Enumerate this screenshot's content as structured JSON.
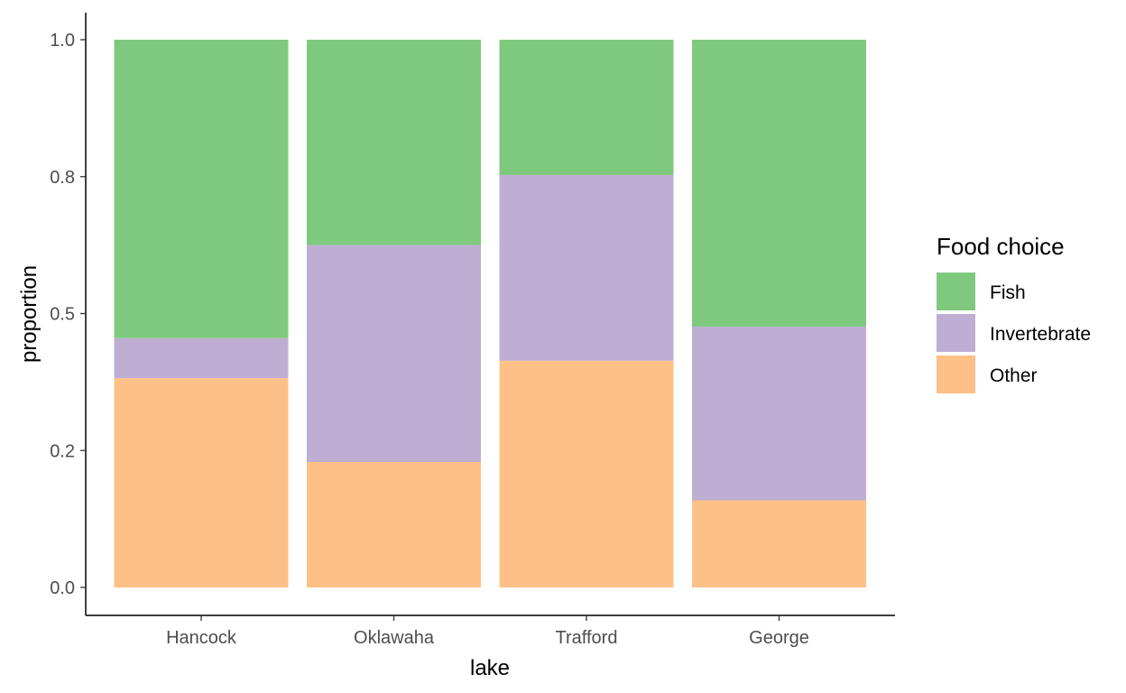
{
  "chart_data": {
    "type": "bar",
    "stacked": true,
    "categories": [
      "Hancock",
      "Oklawaha",
      "Trafford",
      "George"
    ],
    "series": [
      {
        "name": "Other",
        "color": "#FDC086",
        "values": [
          0.382,
          0.229,
          0.414,
          0.159
        ]
      },
      {
        "name": "Invertebrate",
        "color": "#BEAED4",
        "values": [
          0.073,
          0.396,
          0.339,
          0.317
        ]
      },
      {
        "name": "Fish",
        "color": "#7FC97F",
        "values": [
          0.545,
          0.375,
          0.247,
          0.524
        ]
      }
    ],
    "stack_order_top_to_bottom": [
      "Fish",
      "Invertebrate",
      "Other"
    ],
    "xlabel": "lake",
    "ylabel": "proportion",
    "ylim": [
      0,
      1
    ],
    "y_ticks": [
      0.0,
      0.25,
      0.5,
      0.75,
      1.0
    ],
    "y_tick_labels": [
      "0.0",
      "0.2",
      "0.5",
      "0.8",
      "1.0"
    ],
    "grid": false,
    "legend": {
      "title": "Food choice",
      "placement": "right",
      "entries": [
        "Fish",
        "Invertebrate",
        "Other"
      ]
    }
  }
}
